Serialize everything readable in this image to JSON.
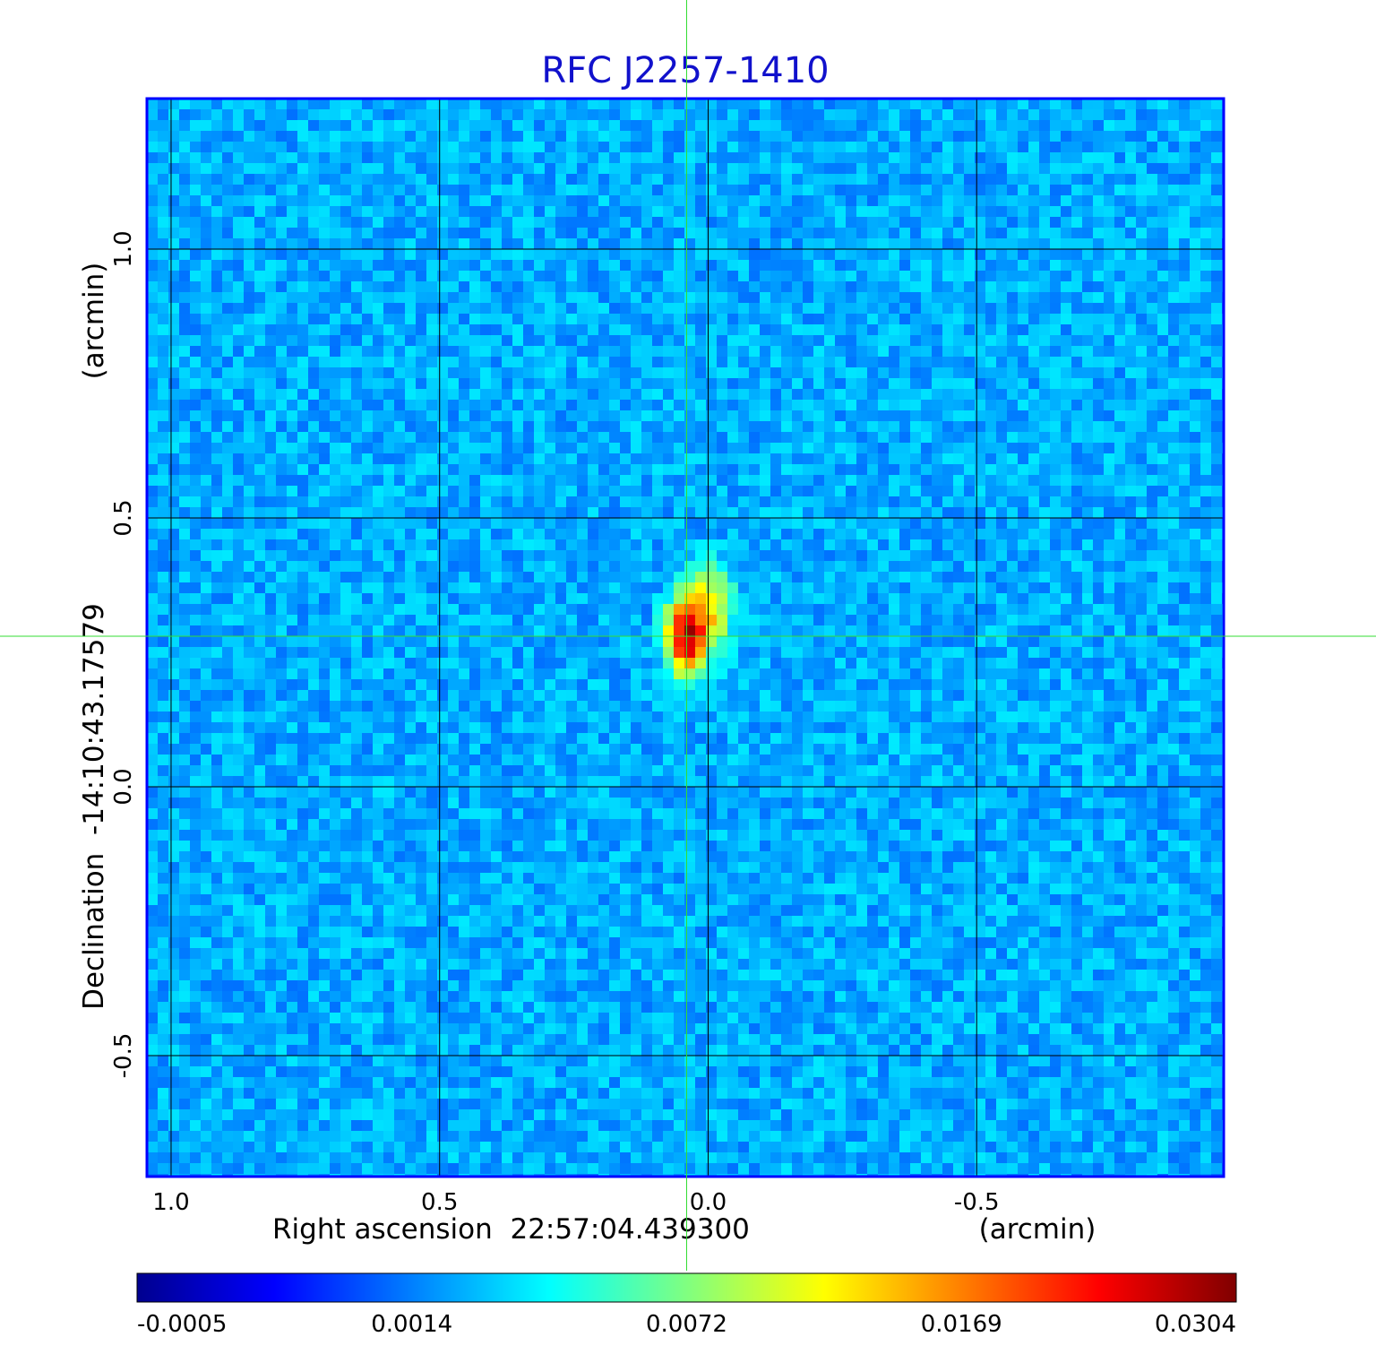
{
  "chart_data": {
    "type": "heatmap",
    "title": "RFC J2257-1410",
    "xlabel": "Right ascension  22:57:04.439300",
    "xunit": "(arcmin)",
    "ylabel": "Declination  -14:10:43.17579",
    "yunit": "(arcmin)",
    "xlim": [
      1.045,
      -0.96
    ],
    "ylim": [
      -0.725,
      1.28
    ],
    "x_ticks": [
      1.0,
      0.5,
      0.0,
      -0.5
    ],
    "x_tick_labels": [
      "1.0",
      "0.5",
      "0.0",
      "-0.5"
    ],
    "y_ticks": [
      1.0,
      0.5,
      0.0,
      -0.5
    ],
    "y_tick_labels": [
      "1.0",
      "0.5",
      "0.0",
      "-0.5"
    ],
    "grid": true,
    "crosshair": {
      "x": 0.04,
      "y": 0.28
    },
    "sources": [
      {
        "x": 0.04,
        "y": 0.28,
        "peak": 0.0304,
        "sigma_x": 0.02,
        "sigma_y": 0.04
      },
      {
        "x": 0.0,
        "y": 0.33,
        "peak": 0.009,
        "sigma_x": 0.025,
        "sigma_y": 0.045
      }
    ],
    "colorbar": {
      "colormap": "jet",
      "tick_labels": [
        "-0.0005",
        "0.0014",
        "0.0072",
        "0.0169",
        "0.0304"
      ],
      "range": [
        -0.0005,
        0.0304
      ]
    },
    "colors": {
      "title": "#1111cc",
      "grid": "#000000",
      "crosshair": "#33dd33",
      "frame": "#0000ff"
    }
  }
}
